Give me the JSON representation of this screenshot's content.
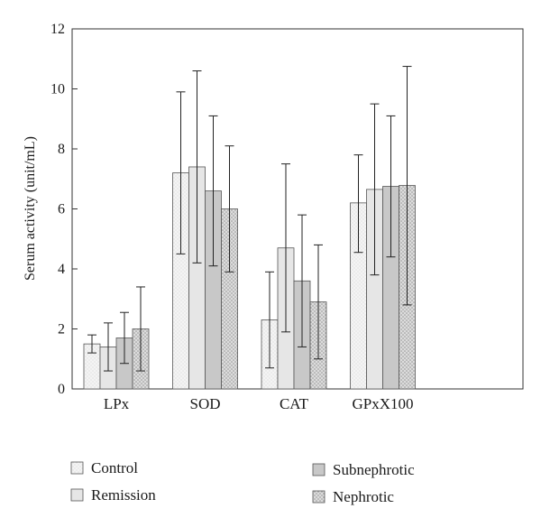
{
  "chart_data": {
    "type": "bar",
    "title": "",
    "xlabel": "",
    "ylabel": "Serum activity (unit/mL)",
    "ylim": [
      0,
      12
    ],
    "yticks": [
      0,
      2,
      4,
      6,
      8,
      10,
      12
    ],
    "grid": false,
    "legend_position": "bottom",
    "categories": [
      "LPx",
      "SOD",
      "CAT",
      "GPxX100"
    ],
    "series": [
      {
        "name": "Control",
        "values": [
          1.5,
          7.2,
          2.3,
          6.2
        ],
        "error_upper": [
          1.8,
          9.9,
          3.9,
          7.8
        ],
        "error_lower": [
          1.2,
          4.5,
          0.7,
          4.55
        ]
      },
      {
        "name": "Remission",
        "values": [
          1.4,
          7.4,
          4.7,
          6.65
        ],
        "error_upper": [
          2.2,
          10.6,
          7.5,
          9.5
        ],
        "error_lower": [
          0.6,
          4.2,
          1.9,
          3.8
        ]
      },
      {
        "name": "Subnephrotic",
        "values": [
          1.7,
          6.6,
          3.6,
          6.75
        ],
        "error_upper": [
          2.55,
          9.1,
          5.8,
          9.1
        ],
        "error_lower": [
          0.85,
          4.1,
          1.4,
          4.4
        ]
      },
      {
        "name": "Nephrotic",
        "values": [
          2.0,
          6.0,
          2.9,
          6.78
        ],
        "error_upper": [
          3.4,
          8.1,
          4.8,
          10.75
        ],
        "error_lower": [
          0.6,
          3.9,
          1.0,
          2.8
        ]
      }
    ],
    "colors": {
      "control_fill": "#f4f4f4",
      "control_dot": "#c8c8c8",
      "remission_fill": "#e6e6e6",
      "subnephrotic_fill": "#c8c8c8",
      "nephrotic_fill": "#dcdcdc",
      "nephrotic_dot": "#9a9a9a",
      "axis": "#333333",
      "bar_stroke": "#555555"
    }
  }
}
